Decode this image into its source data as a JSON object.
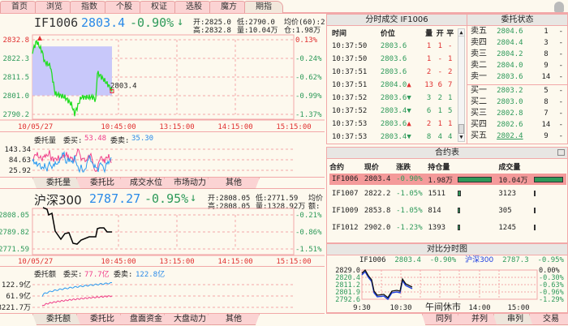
{
  "top_tabs": [
    "首页",
    "浏览",
    "指数",
    "个股",
    "权证",
    "选股",
    "魔方",
    "期指"
  ],
  "active_top_tab": "期指",
  "main": {
    "symbol": "IF1006",
    "price": "2803.4",
    "change": "-0.90%",
    "arrow": "↓",
    "open": "开:2825.0",
    "high": "高:2832.8",
    "low": "低:2790.0",
    "vol": "量:10.04万",
    "avg": "均价(60):2",
    "oi": "仓:1.98万",
    "y_left": [
      "2832.8",
      "2822.3",
      "2811.5",
      "2801.0",
      "2790.2"
    ],
    "y_right": [
      "0.13%",
      "-0.24%",
      "-0.62%",
      "-0.99%",
      "-1.37%"
    ],
    "last_label": "2803.4",
    "times": [
      "10/05/27",
      "10:45:00",
      "13:15:00",
      "14:15:00",
      "15:15:00"
    ]
  },
  "order_vol": {
    "title": "委托量",
    "buy_label": "委买:",
    "buy": "53.48",
    "sell_label": "委卖:",
    "sell": "35.30",
    "y": [
      "143.34",
      "84.63",
      "25.92"
    ]
  },
  "mid_tabs": [
    "委托量",
    "委托比",
    "成交水位",
    "市场动力",
    "其他"
  ],
  "index": {
    "name": "沪深300",
    "price": "2787.27",
    "change": "-0.95%",
    "arrow": "↓",
    "open": "开:2808.05",
    "high": "高:2808.05",
    "low": "低:2771.59",
    "vol": "量:1328.92万",
    "avg": "均价",
    "amt": "额:",
    "y_left": [
      "2808.05",
      "2789.82",
      "2771.59"
    ],
    "y_right": [
      "-0.21%",
      "-0.86%",
      "-1.51%"
    ],
    "times": [
      "10/05/27",
      "10:45:00",
      "13:15:00",
      "14:15:00",
      "15:15:00"
    ]
  },
  "order_amt": {
    "title": "委托额",
    "buy_label": "委买:",
    "buy": "77.7亿",
    "sell_label": "委卖:",
    "sell": "122.8亿",
    "y": [
      "122.9亿",
      "61.9亿",
      "8221.7万"
    ]
  },
  "bottom_tabs_left": [
    "委托额",
    "委托比",
    "盘面资金",
    "大盘动力",
    "其他"
  ],
  "ticks": {
    "title": "分时成交 IF1006",
    "headers": [
      "时间",
      "价位",
      "量",
      "开",
      "平"
    ],
    "rows": [
      [
        "10:37:50",
        "2803.6",
        "",
        "1",
        "1",
        "-"
      ],
      [
        "10:37:50",
        "2803.6",
        "",
        "1",
        "-",
        "1"
      ],
      [
        "10:37:51",
        "2803.6",
        "",
        "2",
        "-",
        "2"
      ],
      [
        "10:37:51",
        "2804.0",
        "up",
        "13",
        "6",
        "7"
      ],
      [
        "10:37:52",
        "2803.6",
        "down",
        "3",
        "2",
        "1"
      ],
      [
        "10:37:52",
        "2803.4",
        "down",
        "6",
        "1",
        "5"
      ],
      [
        "10:37:53",
        "2803.6",
        "up",
        "2",
        "1",
        "1"
      ],
      [
        "10:37:53",
        "2803.4",
        "down",
        "8",
        "4",
        "4"
      ]
    ]
  },
  "orderbook": {
    "title": "委托状态",
    "asks": [
      [
        "卖五",
        "2804.6",
        "1",
        "-"
      ],
      [
        "卖四",
        "2804.4",
        "3",
        "-"
      ],
      [
        "卖三",
        "2804.2",
        "8",
        "-"
      ],
      [
        "卖二",
        "2804.0",
        "9",
        "-"
      ],
      [
        "卖一",
        "2803.6",
        "14",
        "-"
      ]
    ],
    "bids": [
      [
        "买一",
        "2803.2",
        "5",
        "-"
      ],
      [
        "买二",
        "2803.0",
        "8",
        "-"
      ],
      [
        "买三",
        "2802.8",
        "7",
        "-"
      ],
      [
        "买四",
        "2802.6",
        "14",
        "-"
      ],
      [
        "买五",
        "2802.4",
        "9",
        "-"
      ]
    ]
  },
  "contracts": {
    "title": "合约表",
    "headers": [
      "合约",
      "现价",
      "涨跌",
      "持仓量",
      "成交量"
    ],
    "rows": [
      [
        "IF1006",
        "2803.4",
        "-0.90%",
        "1.98万",
        "10.04万",
        1,
        1
      ],
      [
        "IF1007",
        "2822.2",
        "-1.05%",
        "1511",
        "3123",
        0.08,
        0.03
      ],
      [
        "IF1009",
        "2853.8",
        "-1.05%",
        "814",
        "305",
        0.04,
        0.01
      ],
      [
        "IF1012",
        "2902.0",
        "-1.23%",
        "1393",
        "1245",
        0.07,
        0.01
      ]
    ]
  },
  "compare": {
    "title": "对比分时图",
    "sym": "IF1006",
    "sym_price": "2803.4",
    "sym_chg": "-0.90%",
    "idx": "沪深300",
    "idx_price": "2787.3",
    "idx_chg": "-0.95%",
    "y_left": [
      "2829.0",
      "2820.4",
      "2811.2",
      "2801.9",
      "2792.6"
    ],
    "y_right": [
      "0.00%",
      "-0.30%",
      "-0.63%",
      "-0.96%",
      "-1.29%"
    ],
    "times": [
      "9:30",
      "10:30",
      "午间休市",
      "14:00",
      "15:00"
    ]
  },
  "bottom_tabs_right": [
    "同列",
    "并列",
    "串列",
    "交易"
  ],
  "colors": {
    "up": "#e03030",
    "down": "#2e9a5a",
    "border": "#f2a8a8",
    "tab": "#fbd3d3",
    "area": "#c8c8fa"
  }
}
